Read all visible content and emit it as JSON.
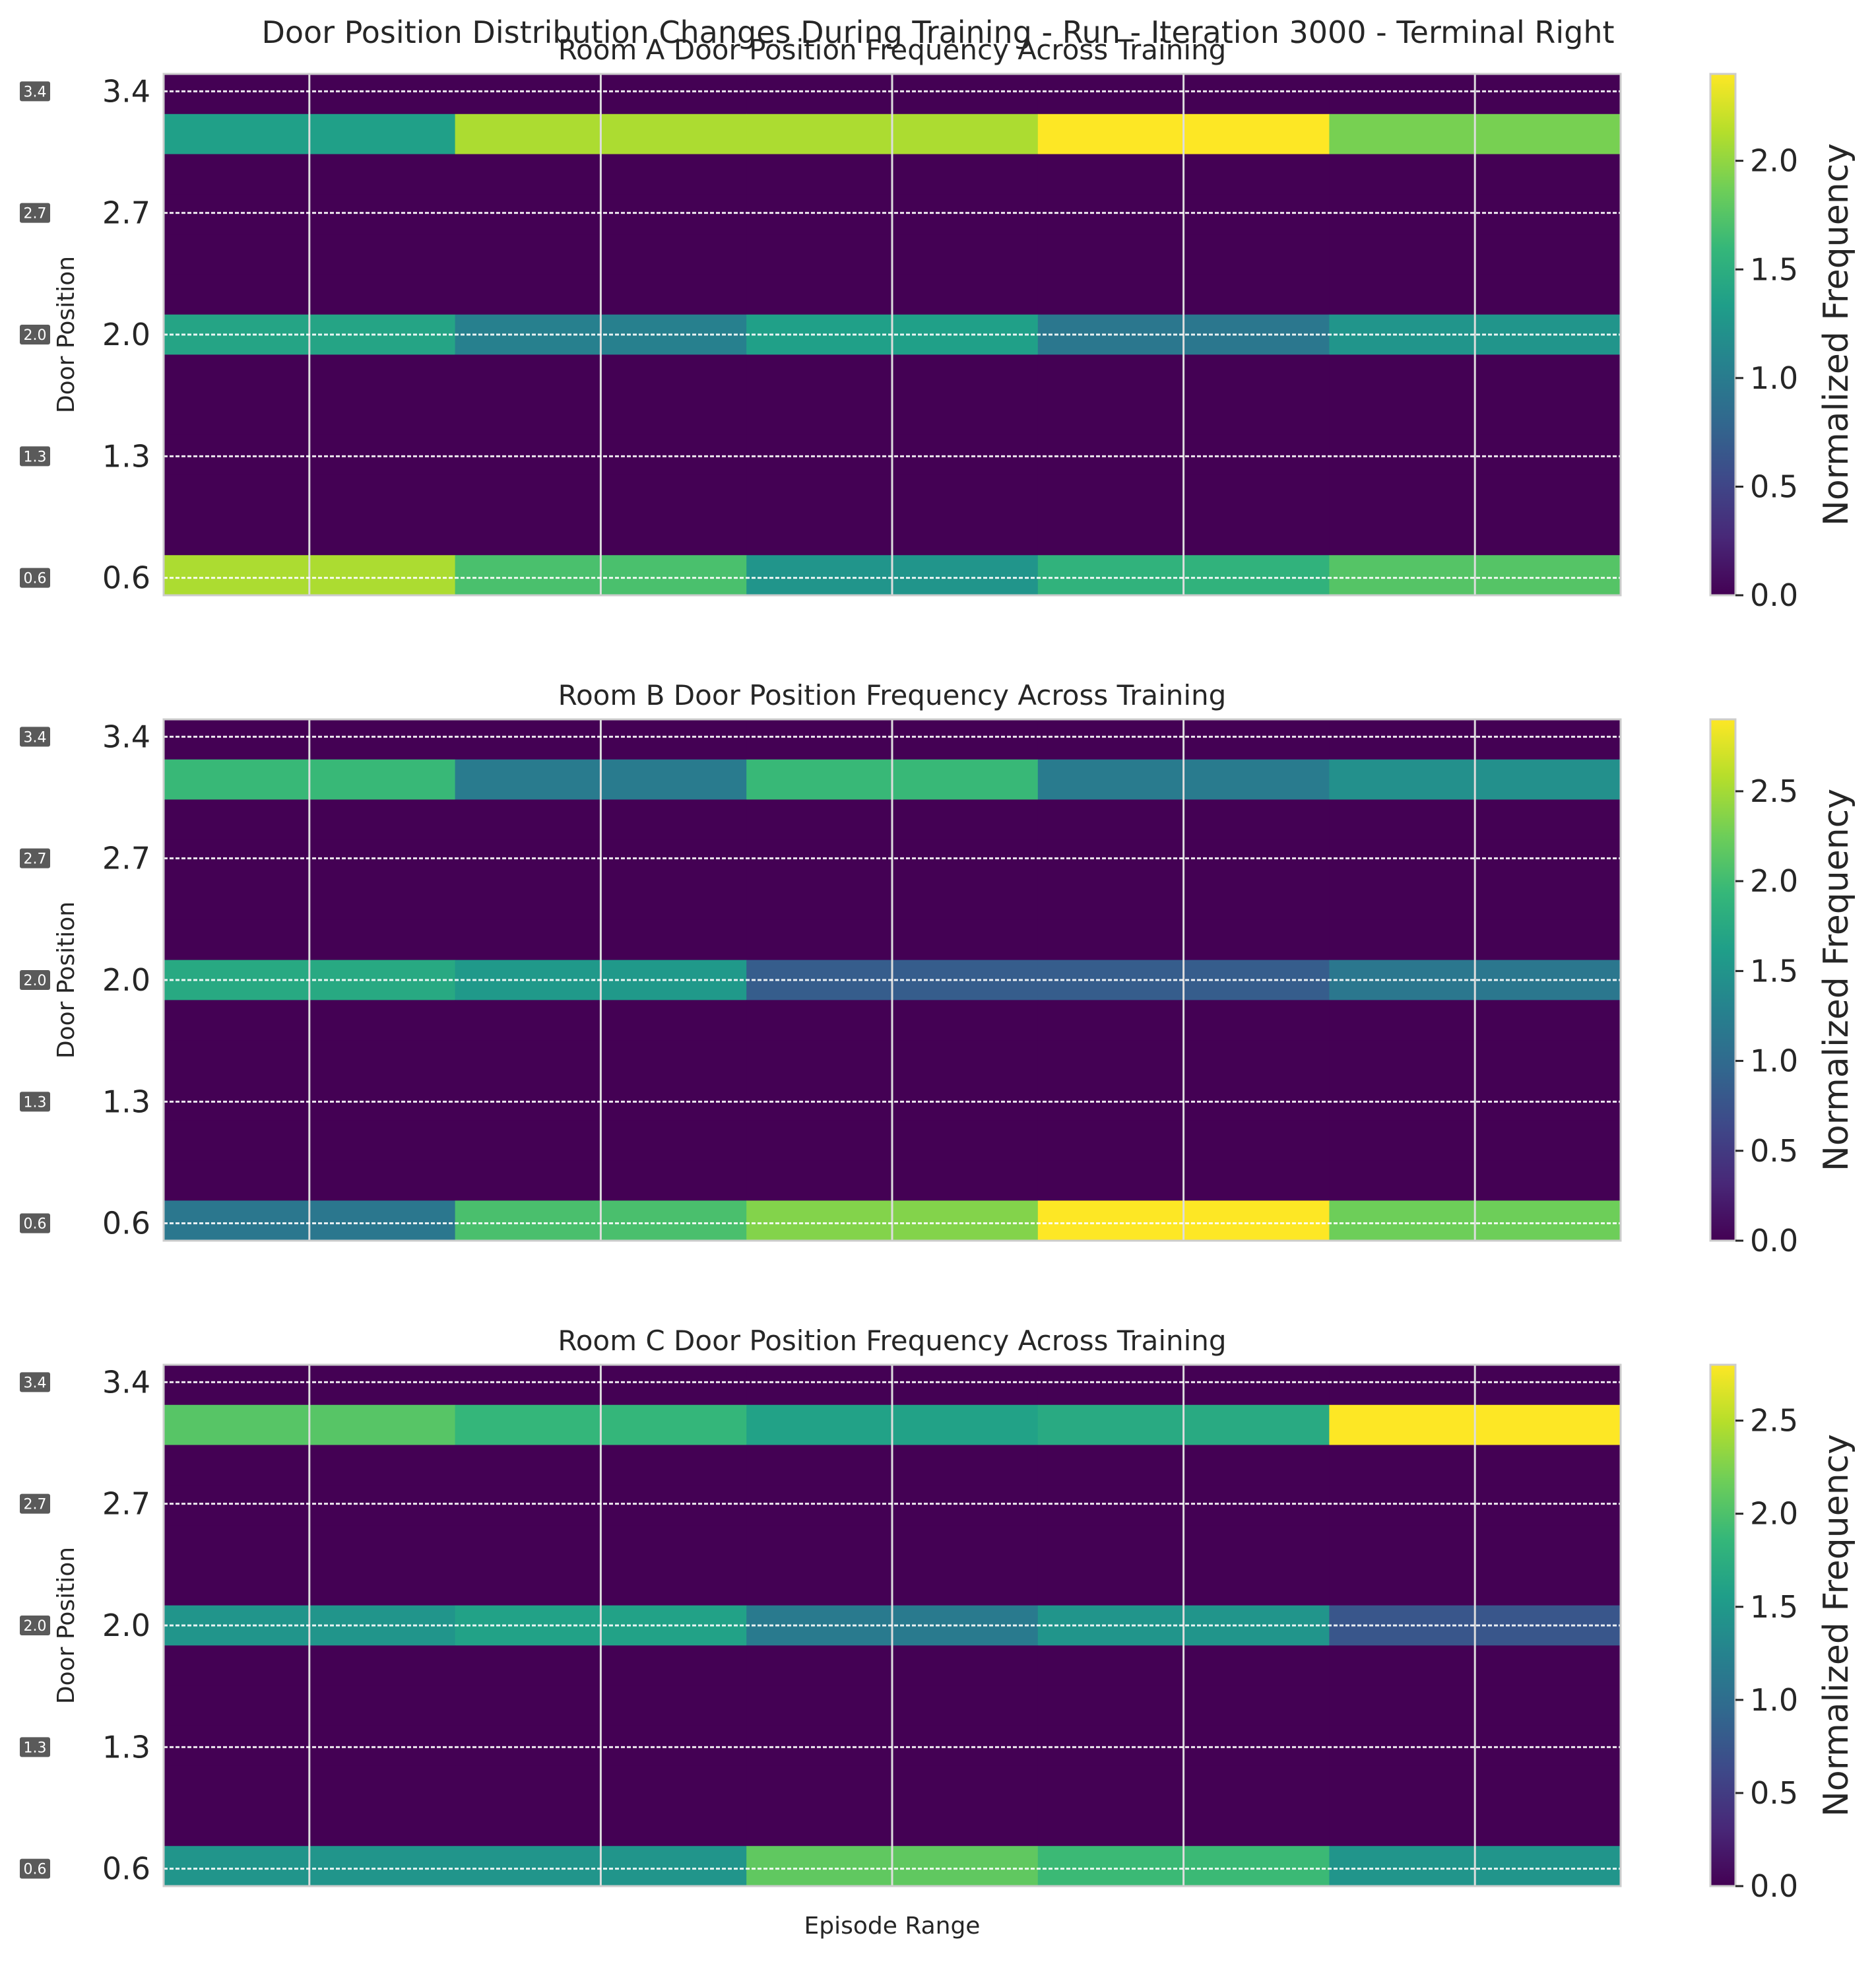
{
  "figure": {
    "suptitle": "Door Position Distribution Changes During Training - Run - Iteration 3000 - Terminal Right",
    "xlabel": "Episode Range"
  },
  "colormap": {
    "name": "viridis",
    "stops": [
      "#440154",
      "#482878",
      "#3e4989",
      "#31688e",
      "#26828e",
      "#1f9e89",
      "#35b779",
      "#6ece58",
      "#b5de2b",
      "#fde725"
    ]
  },
  "chart_data": [
    {
      "type": "heatmap",
      "title": "Room A Door Position Frequency Across Training",
      "ylabel": "Door Position",
      "colorbar_label": "Normalized Frequency",
      "colorbar_ticks": [
        "0.0",
        "0.5",
        "1.0",
        "1.5",
        "2.0"
      ],
      "ytick_labels": [
        "3.4",
        "2.7",
        "2.0",
        "1.3",
        "0.6"
      ],
      "ytick_badges": [
        "3.4",
        "2.7",
        "2.0",
        "1.3",
        "0.6"
      ],
      "y_range": [
        0.5,
        3.5
      ],
      "n_columns": 5,
      "rows_top_to_bottom": [
        0,
        2.0,
        0,
        0,
        0,
        0,
        1.3,
        0,
        0,
        0,
        0,
        0,
        1.95
      ],
      "grid": true,
      "cells": [
        [
          0,
          0,
          0,
          0,
          0
        ],
        [
          1.35,
          2.1,
          2.1,
          2.4,
          1.9
        ],
        [
          0,
          0,
          0,
          0,
          0
        ],
        [
          0,
          0,
          0,
          0,
          0
        ],
        [
          0,
          0,
          0,
          0,
          0
        ],
        [
          0,
          0,
          0,
          0,
          0
        ],
        [
          1.4,
          1.05,
          1.35,
          0.95,
          1.25
        ],
        [
          0,
          0,
          0,
          0,
          0
        ],
        [
          0,
          0,
          0,
          0,
          0
        ],
        [
          0,
          0,
          0,
          0,
          0
        ],
        [
          0,
          0,
          0,
          0,
          0
        ],
        [
          0,
          0,
          0,
          0,
          0
        ],
        [
          2.1,
          1.7,
          1.25,
          1.55,
          1.75
        ]
      ],
      "vmin": 0,
      "vmax": 2.4
    },
    {
      "type": "heatmap",
      "title": "Room B Door Position Frequency Across Training",
      "ylabel": "Door Position",
      "colorbar_label": "Normalized Frequency",
      "colorbar_ticks": [
        "0.0",
        "0.5",
        "1.0",
        "1.5",
        "2.0",
        "2.5"
      ],
      "ytick_labels": [
        "3.4",
        "2.7",
        "2.0",
        "1.3",
        "0.6"
      ],
      "ytick_badges": [
        "3.4",
        "2.7",
        "2.0",
        "1.3",
        "0.6"
      ],
      "y_range": [
        0.5,
        3.5
      ],
      "n_columns": 5,
      "grid": true,
      "cells": [
        [
          0,
          0,
          0,
          0,
          0
        ],
        [
          1.95,
          1.2,
          1.95,
          1.2,
          1.45
        ],
        [
          0,
          0,
          0,
          0,
          0
        ],
        [
          0,
          0,
          0,
          0,
          0
        ],
        [
          0,
          0,
          0,
          0,
          0
        ],
        [
          0,
          0,
          0,
          0,
          0
        ],
        [
          1.75,
          1.55,
          0.85,
          0.85,
          1.15
        ],
        [
          0,
          0,
          0,
          0,
          0
        ],
        [
          0,
          0,
          0,
          0,
          0
        ],
        [
          0,
          0,
          0,
          0,
          0
        ],
        [
          0,
          0,
          0,
          0,
          0
        ],
        [
          0,
          0,
          0,
          0,
          0
        ],
        [
          1.15,
          2.05,
          2.35,
          2.9,
          2.25
        ]
      ],
      "vmin": 0,
      "vmax": 2.9
    },
    {
      "type": "heatmap",
      "title": "Room C Door Position Frequency Across Training",
      "ylabel": "Door Position",
      "colorbar_label": "Normalized Frequency",
      "colorbar_ticks": [
        "0.0",
        "0.5",
        "1.0",
        "1.5",
        "2.0",
        "2.5"
      ],
      "ytick_labels": [
        "3.4",
        "2.7",
        "2.0",
        "1.3",
        "0.6"
      ],
      "ytick_badges": [
        "3.4",
        "2.7",
        "2.0",
        "1.3",
        "0.6"
      ],
      "y_range": [
        0.5,
        3.5
      ],
      "n_columns": 5,
      "grid": true,
      "cells": [
        [
          0,
          0,
          0,
          0,
          0
        ],
        [
          2.05,
          1.85,
          1.6,
          1.7,
          2.8
        ],
        [
          0,
          0,
          0,
          0,
          0
        ],
        [
          0,
          0,
          0,
          0,
          0
        ],
        [
          0,
          0,
          0,
          0,
          0
        ],
        [
          0,
          0,
          0,
          0,
          0
        ],
        [
          1.45,
          1.6,
          1.15,
          1.45,
          0.75
        ],
        [
          0,
          0,
          0,
          0,
          0
        ],
        [
          0,
          0,
          0,
          0,
          0
        ],
        [
          0,
          0,
          0,
          0,
          0
        ],
        [
          0,
          0,
          0,
          0,
          0
        ],
        [
          0,
          0,
          0,
          0,
          0
        ],
        [
          1.45,
          1.45,
          2.1,
          1.9,
          1.45
        ]
      ],
      "vmin": 0,
      "vmax": 2.8
    }
  ]
}
